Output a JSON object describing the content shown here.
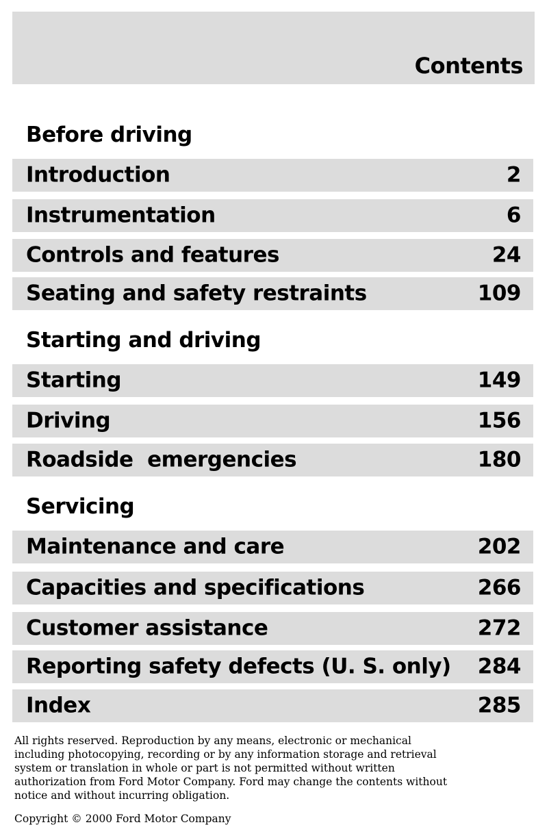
{
  "header": {
    "title": "Contents"
  },
  "sections": [
    {
      "heading": "Before driving",
      "items": [
        {
          "label": "Introduction",
          "page": "2"
        },
        {
          "label": "Instrumentation",
          "page": "6"
        },
        {
          "label": "Controls and features",
          "page": "24"
        },
        {
          "label": "Seating and safety restraints",
          "page": "109"
        }
      ]
    },
    {
      "heading": "Starting and driving",
      "items": [
        {
          "label": "Starting",
          "page": "149"
        },
        {
          "label": "Driving",
          "page": "156"
        },
        {
          "label": "Roadside  emergencies",
          "page": "180"
        }
      ]
    },
    {
      "heading": "Servicing",
      "items": [
        {
          "label": "Maintenance and care",
          "page": "202"
        },
        {
          "label": "Capacities and specifications",
          "page": "266"
        },
        {
          "label": "Customer assistance",
          "page": "272"
        },
        {
          "label": "Reporting safety defects (U. S. only)",
          "page": "284"
        },
        {
          "label": "Index",
          "page": "285"
        }
      ]
    }
  ],
  "footer": {
    "legal": "All rights reserved. Reproduction by any means, electronic or mechanical including photocopying, recording or by any information storage and retrieval system or translation in whole or part is not permitted without written authorization from Ford Motor Company. Ford may change the contents without notice and without incurring obligation.",
    "copyright": "Copyright © 2000 Ford Motor Company"
  }
}
